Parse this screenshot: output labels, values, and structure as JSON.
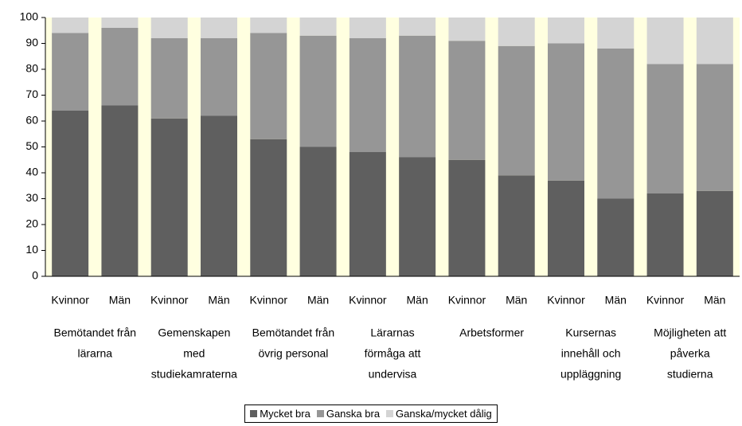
{
  "chart_data": {
    "type": "stacked_bar",
    "categories": [
      "Kvinnor",
      "Män",
      "Kvinnor",
      "Män",
      "Kvinnor",
      "Män",
      "Kvinnor",
      "Män",
      "Kvinnor",
      "Män",
      "Kvinnor",
      "Män",
      "Kvinnor",
      "Män"
    ],
    "groups": [
      {
        "lines": [
          "Bemötandet från",
          "lärarna"
        ]
      },
      {
        "lines": [
          "Gemenskapen",
          "med",
          "studiekamraterna"
        ]
      },
      {
        "lines": [
          "Bemötandet från",
          "övrig personal"
        ]
      },
      {
        "lines": [
          "Lärarnas",
          "förmåga att",
          "undervisa"
        ]
      },
      {
        "lines": [
          "Arbetsformer"
        ]
      },
      {
        "lines": [
          "Kursernas",
          "innehåll och",
          "uppläggning"
        ]
      },
      {
        "lines": [
          "Möjligheten att",
          "påverka",
          "studierna"
        ]
      }
    ],
    "series": [
      {
        "name": "Mycket bra",
        "color": "#5f5f5f",
        "values": [
          64,
          66,
          61,
          62,
          53,
          50,
          48,
          46,
          45,
          39,
          37,
          30,
          32,
          33
        ]
      },
      {
        "name": "Ganska bra",
        "color": "#969696",
        "values": [
          30,
          30,
          31,
          30,
          41,
          43,
          44,
          47,
          46,
          50,
          53,
          58,
          50,
          49
        ]
      },
      {
        "name": "Ganska/mycket dålig",
        "color": "#d4d4d4",
        "values": [
          6,
          4,
          8,
          8,
          6,
          7,
          8,
          7,
          9,
          11,
          10,
          12,
          18,
          18
        ]
      }
    ],
    "ylim": [
      0,
      100
    ],
    "yticks": [
      0,
      10,
      20,
      30,
      40,
      50,
      60,
      70,
      80,
      90,
      100
    ],
    "plot_background": "#ffffe0",
    "legend": "bottom"
  }
}
